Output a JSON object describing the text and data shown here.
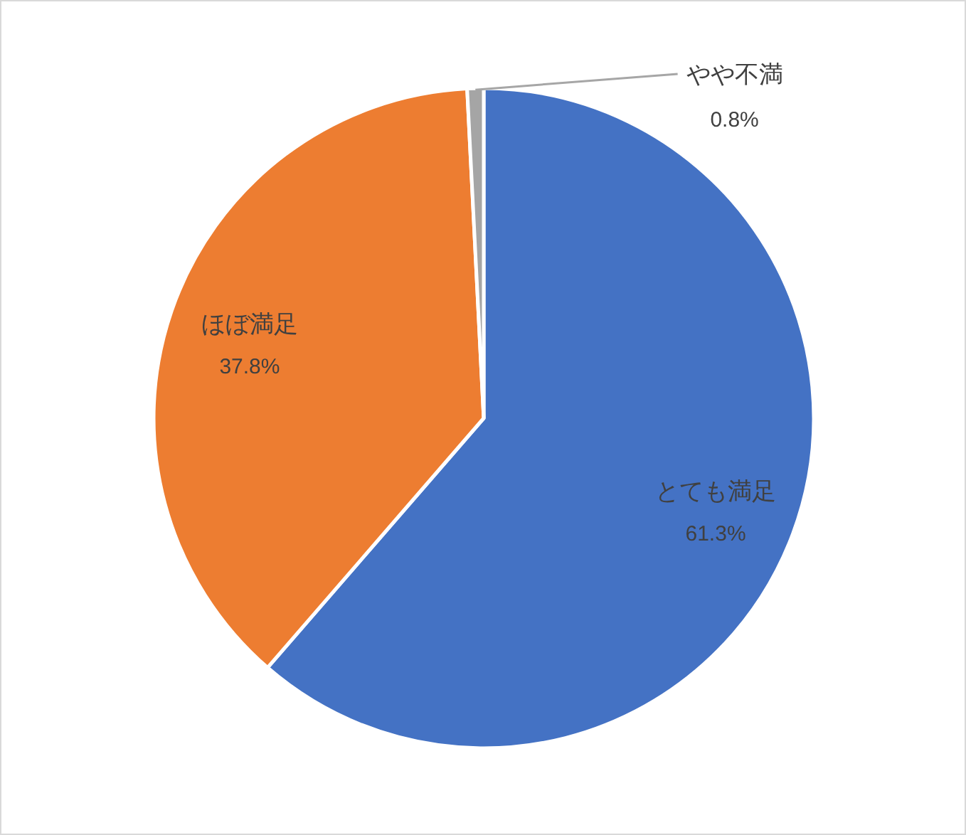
{
  "chart_data": {
    "type": "pie",
    "categories": [
      "とても満足",
      "ほぼ満足",
      "やや不満"
    ],
    "values": [
      61.3,
      37.8,
      0.8
    ],
    "colors": [
      "#4472c4",
      "#ed7d31",
      "#a5a5a5"
    ],
    "value_labels": [
      "61.3%",
      "37.8%",
      "0.8%"
    ]
  }
}
